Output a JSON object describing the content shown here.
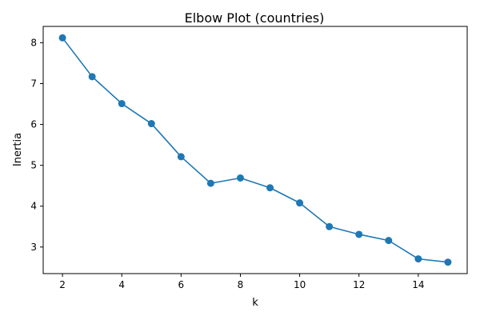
{
  "chart_data": {
    "type": "line",
    "title": "Elbow Plot (countries)",
    "xlabel": "k",
    "ylabel": "Inertia",
    "xlim": [
      1.35,
      15.65
    ],
    "ylim": [
      2.35,
      8.4
    ],
    "x_ticks": [
      2,
      4,
      6,
      8,
      10,
      12,
      14
    ],
    "y_ticks": [
      3,
      4,
      5,
      6,
      7,
      8
    ],
    "grid": false,
    "legend": "none",
    "color": "#1f77b4",
    "marker": "circle",
    "series": [
      {
        "x": [
          2,
          3,
          4,
          5,
          6,
          7,
          8,
          9,
          10,
          11,
          12,
          13,
          14,
          15
        ],
        "values": [
          8.12,
          7.17,
          6.51,
          6.02,
          5.21,
          4.56,
          4.69,
          4.45,
          4.08,
          3.5,
          3.31,
          3.16,
          2.71,
          2.63
        ]
      }
    ]
  }
}
